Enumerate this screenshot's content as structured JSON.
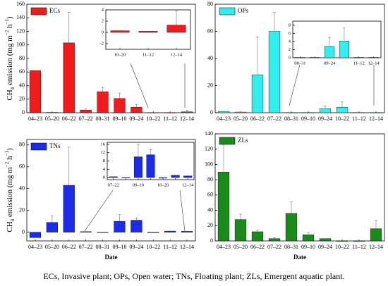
{
  "caption": "ECs, Invasive plant; OPs, Open water; TNs, Floating plant; ZLs, Emergent aquatic plant.",
  "chart_data": [
    {
      "type": "bar",
      "name": "ECs",
      "color": "#ee1c1c",
      "ylabel_parts": [
        "CH",
        "4",
        " emission (mg m",
        "−2",
        " h",
        "−1",
        ")"
      ],
      "categories": [
        "04–23",
        "05–20",
        "06–22",
        "07–22",
        "08–31",
        "09–10",
        "09–24",
        "10–22",
        "11–12",
        "12–14"
      ],
      "values": [
        62,
        0.5,
        103,
        4,
        31,
        21,
        8,
        0.3,
        0.2,
        1.3
      ],
      "errors": [
        0,
        0,
        45,
        2,
        6,
        8,
        4,
        0,
        0,
        2.5
      ],
      "ylim": [
        0,
        160
      ],
      "yticks": [
        0,
        20,
        40,
        60,
        80,
        100,
        120,
        140,
        160
      ],
      "inset": {
        "categories": [
          "10–20",
          "11–12",
          "12–14"
        ],
        "values": [
          0.3,
          0.2,
          1.3
        ],
        "errors": [
          0,
          0,
          2.5
        ],
        "ylim": [
          -3,
          4
        ],
        "yticks": [
          -2,
          0,
          2,
          4
        ]
      }
    },
    {
      "type": "bar",
      "name": "OPs",
      "color": "#33eeee",
      "categories": [
        "04–23",
        "05–20",
        "06–22",
        "07–22",
        "08–31",
        "09–10",
        "09–24",
        "10–22",
        "11–12",
        "12–14"
      ],
      "values": [
        1,
        0.5,
        28,
        60,
        0.1,
        0.1,
        3,
        4,
        0.2,
        0.1
      ],
      "errors": [
        0,
        0,
        28,
        14,
        0,
        0,
        2,
        4,
        0,
        0
      ],
      "ylim": [
        0,
        80
      ],
      "yticks": [
        0,
        20,
        40,
        60,
        80
      ],
      "inset": {
        "categories": [
          "08–31",
          null,
          "09–24",
          null,
          "11–12",
          "12–14"
        ],
        "values": [
          0.1,
          0.1,
          2.8,
          4.1,
          0.1,
          0.1
        ],
        "errors": [
          0,
          0,
          2.2,
          3.2,
          0,
          0
        ],
        "ylim": [
          0,
          9
        ],
        "yticks": [
          0,
          2,
          4,
          6,
          8
        ]
      }
    },
    {
      "type": "bar",
      "name": "TNs",
      "color": "#1c2ce6",
      "ylabel_parts": [
        "CH",
        "4",
        " emission (mg m",
        "−2",
        " h",
        "−1",
        ")"
      ],
      "xlabel": "Date",
      "categories": [
        "04–23",
        "05–20",
        "06–22",
        "07–22",
        "08–31",
        "09–10",
        "09–24",
        "10–22",
        "11–12",
        "12–14"
      ],
      "values": [
        -5,
        9,
        43,
        0.5,
        0,
        10,
        11,
        -0.5,
        1,
        0.8
      ],
      "errors": [
        0,
        6,
        35,
        0,
        0,
        6,
        2,
        0,
        0,
        0
      ],
      "ylim": [
        -8,
        85
      ],
      "yticks": [
        0,
        20,
        40,
        60,
        80
      ],
      "inset": {
        "categories": [
          "07–22",
          null,
          "09–10",
          null,
          "10–20",
          null,
          "12–14"
        ],
        "values": [
          0.4,
          0,
          10,
          11,
          -0.3,
          1.1,
          0.8
        ],
        "errors": [
          0,
          0,
          6,
          2.5,
          0,
          0,
          0
        ],
        "ylim": [
          -1,
          17
        ],
        "yticks": [
          0,
          4,
          8,
          12,
          16
        ]
      }
    },
    {
      "type": "bar",
      "name": "ZLs",
      "color": "#1a8a1a",
      "xlabel": "Date",
      "categories": [
        "04–23",
        "05–20",
        "06–22",
        "07–22",
        "08–31",
        "09–10",
        "09–24",
        "10–22",
        "11–12",
        "12–14"
      ],
      "values": [
        90,
        28,
        12,
        3,
        36,
        8,
        3,
        0,
        0,
        16
      ],
      "errors": [
        36,
        7,
        2,
        1,
        15,
        3,
        0,
        0,
        0,
        11
      ],
      "ylim": [
        0,
        140
      ],
      "yticks": [
        0,
        20,
        40,
        60,
        80,
        100,
        120,
        140
      ]
    }
  ]
}
